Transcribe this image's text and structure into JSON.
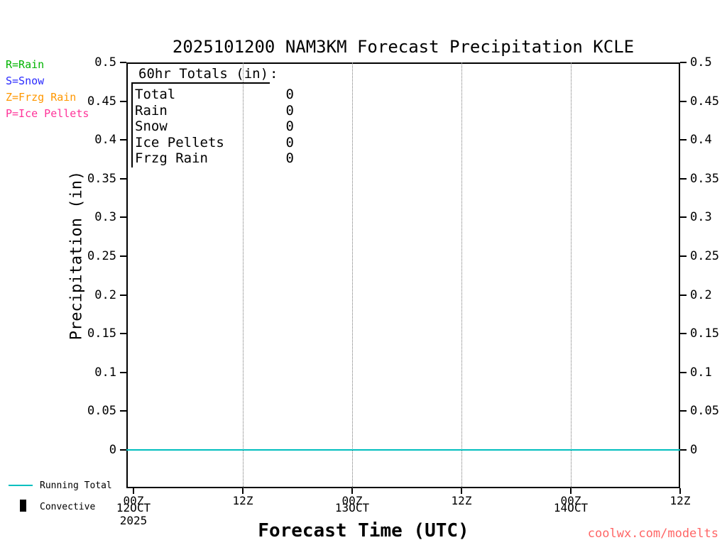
{
  "title": "2025101200 NAM3KM Forecast Precipitation KCLE",
  "legend": {
    "items": [
      {
        "label": "R=Rain",
        "color": "#00b400"
      },
      {
        "label": "S=Snow",
        "color": "#2a2aff"
      },
      {
        "label": "Z=Frzg Rain",
        "color": "#ff9700"
      },
      {
        "label": "P=Ice Pellets",
        "color": "#ff3399"
      }
    ]
  },
  "totals_box": {
    "heading": "60hr Totals (in)",
    "heading_suffix": ":",
    "rows": [
      {
        "label": "Total",
        "value": "0"
      },
      {
        "label": "Rain",
        "value": "0"
      },
      {
        "label": "Snow",
        "value": "0"
      },
      {
        "label": "Ice Pellets",
        "value": "0"
      },
      {
        "label": "Frzg Rain",
        "value": "0"
      }
    ]
  },
  "y_axis": {
    "label": "Precipitation (in)",
    "ticks": [
      "0.5",
      "0.45",
      "0.4",
      "0.35",
      "0.3",
      "0.25",
      "0.2",
      "0.15",
      "0.1",
      "0.05",
      "0"
    ]
  },
  "x_axis": {
    "label": "Forecast Time (UTC)",
    "ticks": [
      "00Z",
      "12Z",
      "00Z",
      "12Z",
      "00Z",
      "12Z"
    ],
    "date_labels": [
      "12OCT",
      "13OCT",
      "14OCT"
    ],
    "year": "2025"
  },
  "bottom_legend": {
    "running_total": {
      "label": "Running Total",
      "color": "#00bfbf"
    },
    "convective": {
      "label": "Convective",
      "color": "#000000"
    }
  },
  "footer": {
    "link": "coolwx.com/modelts",
    "color": "#ff6666"
  },
  "chart_data": {
    "type": "line",
    "title": "2025101200 NAM3KM Forecast Precipitation KCLE",
    "xlabel": "Forecast Time (UTC)",
    "ylabel": "Precipitation (in)",
    "ylim": [
      0,
      0.5
    ],
    "x_range_hours": [
      0,
      60
    ],
    "x_tick_hours": [
      0,
      12,
      24,
      36,
      48,
      60
    ],
    "x_tick_labels": [
      "00Z 12OCT 2025",
      "12Z 12OCT",
      "00Z 13OCT",
      "12Z 13OCT",
      "00Z 14OCT",
      "12Z 14OCT"
    ],
    "grid": "vertical-dotted",
    "legend_position": "bottom-left",
    "series": [
      {
        "name": "Running Total",
        "type": "line",
        "color": "#00bfbf",
        "x_hours": [
          0,
          60
        ],
        "values": [
          0,
          0
        ]
      },
      {
        "name": "Convective",
        "type": "bar",
        "color": "#000000",
        "values": []
      }
    ],
    "totals_60hr_in": {
      "Total": 0,
      "Rain": 0,
      "Snow": 0,
      "Ice Pellets": 0,
      "Frzg Rain": 0
    }
  }
}
